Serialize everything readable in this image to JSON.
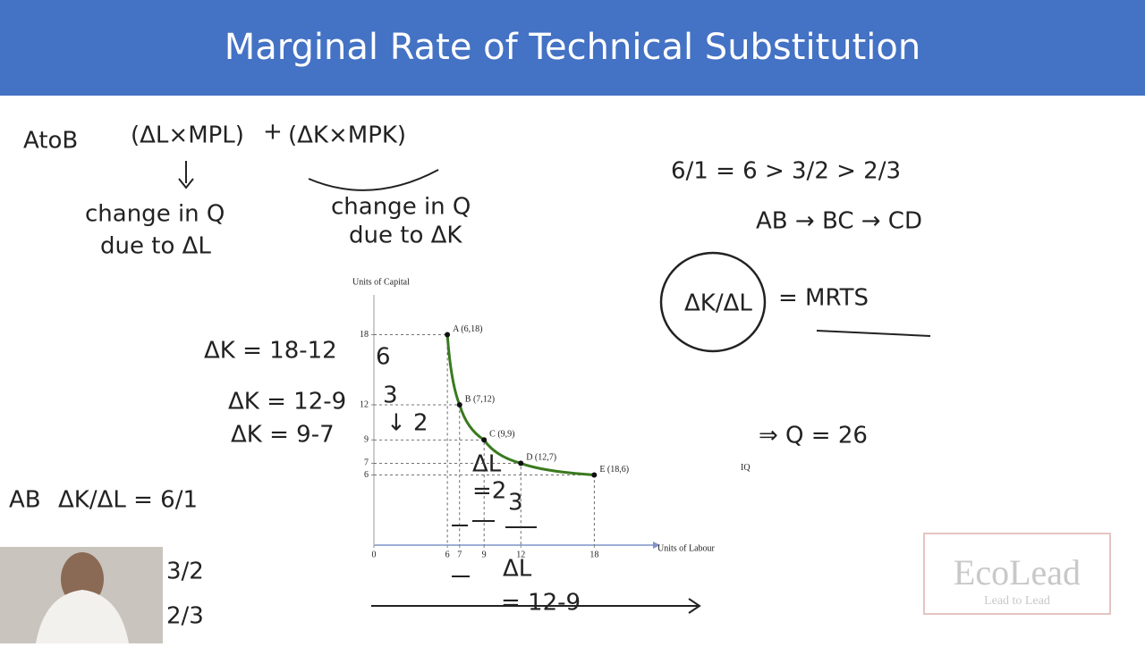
{
  "header": {
    "title": "Marginal Rate of Technical Substitution"
  },
  "notes": [
    "AtoB",
    "(ΔL×MPL)",
    "+",
    "(ΔK×MPK)",
    "change in Q",
    "due to ΔL",
    "change in Q",
    "due to ΔK",
    "6/1 = 6 > 3/2 > 2/3",
    "AB → BC → CD",
    "ΔK/ΔL",
    "= MRTS",
    "ΔK = 18-12",
    "6",
    "ΔK = 12-9",
    "3",
    "ΔK = 9-7",
    "↓ 2",
    "AB",
    "ΔK/ΔL = 6/1",
    "3/2",
    "2/3",
    "ΔL",
    "=2",
    "3",
    "ΔL",
    "= 12-9",
    "⇒ Q = 26"
  ],
  "logo": {
    "name": "EcoLead",
    "tagline": "Lead to Lead"
  },
  "chart_data": {
    "type": "line",
    "x_label": "Units of Labour",
    "y_label": "Units of Capital",
    "curve_label": "IQ",
    "color": "#3a7a1f",
    "x": [
      6,
      7,
      9,
      12,
      18
    ],
    "values": [
      18,
      12,
      9,
      7,
      6
    ],
    "point_labels": [
      "A (6,18)",
      "B (7,12)",
      "C (9,9)",
      "D (12,7)",
      "E (18,6)"
    ],
    "xlim": [
      0,
      22.8
    ],
    "ylim": [
      0,
      21.4
    ],
    "xticks": [
      0,
      6,
      7,
      9,
      12,
      18
    ],
    "yticks": [
      6,
      7,
      9,
      12,
      18
    ]
  }
}
